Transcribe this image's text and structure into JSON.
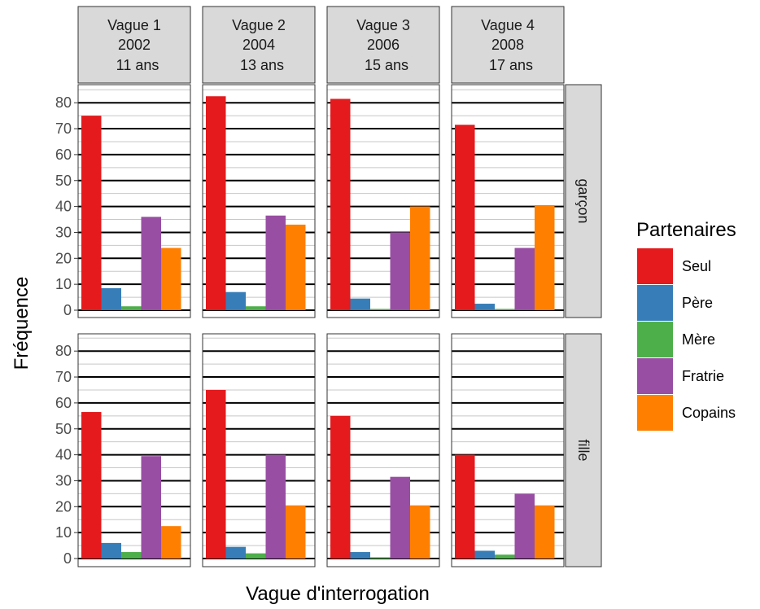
{
  "chart_data": {
    "type": "bar",
    "xlabel": "Vague d'interrogation",
    "ylabel": "Fréquence",
    "ylim": [
      0,
      80
    ],
    "yticks": [
      0,
      10,
      20,
      30,
      40,
      50,
      60,
      70,
      80
    ],
    "grid": true,
    "legend_position": "right",
    "legend_title": "Partenaires",
    "categories": [
      "Seul",
      "Père",
      "Mère",
      "Fratrie",
      "Copains"
    ],
    "colors": [
      "#e41a1c",
      "#377eb8",
      "#4daf4a",
      "#984ea3",
      "#ff7f00"
    ],
    "columns": [
      {
        "line1": "Vague 1",
        "line2": "2002",
        "line3": "11 ans"
      },
      {
        "line1": "Vague 2",
        "line2": "2004",
        "line3": "13 ans"
      },
      {
        "line1": "Vague 3",
        "line2": "2006",
        "line3": "15 ans"
      },
      {
        "line1": "Vague 4",
        "line2": "2008",
        "line3": "17 ans"
      }
    ],
    "rows": [
      {
        "label": "garçon",
        "values": [
          [
            75,
            8.5,
            1.5,
            36,
            24
          ],
          [
            82.5,
            7,
            1.5,
            36.5,
            33
          ],
          [
            81.5,
            4.5,
            0.5,
            30,
            40
          ],
          [
            71.5,
            2.5,
            0.5,
            24,
            40.5
          ]
        ]
      },
      {
        "label": "fille",
        "values": [
          [
            56.5,
            6,
            2.5,
            39.5,
            12.5
          ],
          [
            65,
            4.5,
            2,
            40,
            20.5
          ],
          [
            55,
            2.5,
            0.5,
            31.5,
            20.5
          ],
          [
            40,
            3,
            1.5,
            25,
            20.5
          ]
        ]
      }
    ]
  }
}
